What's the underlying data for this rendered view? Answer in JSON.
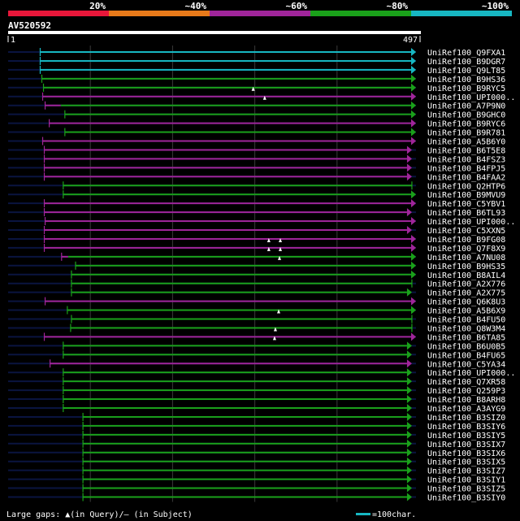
{
  "legend": {
    "bands": [
      {
        "label": "20%",
        "color": "#e8173a"
      },
      {
        "label": "~40%",
        "color": "#e87a1a"
      },
      {
        "label": "~60%",
        "color": "#a0259a"
      },
      {
        "label": "~80%",
        "color": "#1aa11a"
      },
      {
        "label": "~100%",
        "color": "#17b7c2"
      }
    ]
  },
  "query": {
    "name": "AV520592",
    "start": "1",
    "end": "497",
    "length": 497
  },
  "hits": [
    {
      "name": "UniRef100_Q9FXA1",
      "start": 40,
      "end": 497,
      "color": "#17b7c2",
      "arrow": true
    },
    {
      "name": "UniRef100_B9DGR7",
      "start": 40,
      "end": 497,
      "color": "#17b7c2",
      "arrow": true
    },
    {
      "name": "UniRef100_Q9LT85",
      "start": 40,
      "end": 497,
      "color": "#17b7c2",
      "arrow": true
    },
    {
      "name": "UniRef100_B9HS36",
      "start": 42,
      "end": 497,
      "color": "#1aa11a",
      "arrow": true
    },
    {
      "name": "UniRef100_B9RYC5",
      "start": 44,
      "end": 497,
      "color": "#1aa11a",
      "arrow": true,
      "gaps_query": [
        299
      ]
    },
    {
      "name": "UniRef100_UPI000..",
      "start": 43,
      "end": 497,
      "color": "#a0259a",
      "arrow": true,
      "gaps_query": [
        313
      ]
    },
    {
      "name": "UniRef100_A7P9N0",
      "start": 46,
      "end": 497,
      "color": "#a0259a",
      "arrow": true,
      "segments": [
        {
          "start": 46,
          "end": 65,
          "color": "#a0259a"
        },
        {
          "start": 65,
          "end": 497,
          "color": "#1aa11a"
        }
      ]
    },
    {
      "name": "UniRef100_B9GHC0",
      "start": 70,
      "end": 497,
      "color": "#1aa11a",
      "arrow": true
    },
    {
      "name": "UniRef100_B9RYC6",
      "start": 51,
      "end": 497,
      "color": "#a0259a",
      "arrow": true
    },
    {
      "name": "UniRef100_B9R781",
      "start": 70,
      "end": 497,
      "color": "#1aa11a",
      "arrow": true
    },
    {
      "name": "UniRef100_A5B6Y0",
      "start": 43,
      "end": 497,
      "color": "#a0259a",
      "arrow": true
    },
    {
      "name": "UniRef100_B6T5E8",
      "start": 45,
      "end": 492,
      "color": "#a0259a",
      "arrow": true
    },
    {
      "name": "UniRef100_B4FSZ3",
      "start": 45,
      "end": 492,
      "color": "#a0259a",
      "arrow": true
    },
    {
      "name": "UniRef100_B4FPJ5",
      "start": 45,
      "end": 492,
      "color": "#a0259a",
      "arrow": true
    },
    {
      "name": "UniRef100_B4FAA2",
      "start": 45,
      "end": 492,
      "color": "#a0259a",
      "arrow": true
    },
    {
      "name": "UniRef100_Q2HTP6",
      "start": 68,
      "end": 492,
      "color": "#1aa11a",
      "arrow": false
    },
    {
      "name": "UniRef100_B9MVU9",
      "start": 68,
      "end": 497,
      "color": "#1aa11a",
      "arrow": true
    },
    {
      "name": "UniRef100_C5YBV1",
      "start": 45,
      "end": 497,
      "color": "#a0259a",
      "arrow": true
    },
    {
      "name": "UniRef100_B6TL93",
      "start": 45,
      "end": 492,
      "color": "#a0259a",
      "arrow": true
    },
    {
      "name": "UniRef100_UPI000..",
      "start": 46,
      "end": 497,
      "color": "#a0259a",
      "arrow": true
    },
    {
      "name": "UniRef100_C5XXN5",
      "start": 45,
      "end": 492,
      "color": "#a0259a",
      "arrow": true
    },
    {
      "name": "UniRef100_B9FG08",
      "start": 45,
      "end": 497,
      "color": "#a0259a",
      "arrow": true,
      "gaps_query": [
        318,
        332
      ]
    },
    {
      "name": "UniRef100_Q7F8X9",
      "start": 45,
      "end": 497,
      "color": "#a0259a",
      "arrow": true,
      "gaps_query": [
        318,
        332
      ]
    },
    {
      "name": "UniRef100_A7NU08",
      "start": 66,
      "end": 497,
      "color": "#a0259a",
      "arrow": true,
      "segments": [
        {
          "start": 66,
          "end": 74,
          "color": "#a0259a"
        },
        {
          "start": 74,
          "end": 497,
          "color": "#1aa11a"
        }
      ],
      "gaps_query": [
        331
      ]
    },
    {
      "name": "UniRef100_B9HS35",
      "start": 83,
      "end": 497,
      "color": "#1aa11a",
      "arrow": true
    },
    {
      "name": "UniRef100_B8AIL4",
      "start": 78,
      "end": 497,
      "color": "#1aa11a",
      "arrow": true
    },
    {
      "name": "UniRef100_A2X776",
      "start": 78,
      "end": 492,
      "color": "#1aa11a",
      "arrow": false
    },
    {
      "name": "UniRef100_A2X775",
      "start": 78,
      "end": 492,
      "color": "#1aa11a",
      "arrow": true
    },
    {
      "name": "UniRef100_Q6K8U3",
      "start": 46,
      "end": 497,
      "color": "#a0259a",
      "arrow": true
    },
    {
      "name": "UniRef100_A5B6X9",
      "start": 73,
      "end": 497,
      "color": "#1aa11a",
      "arrow": true,
      "gaps_query": [
        330
      ]
    },
    {
      "name": "UniRef100_B4FU50",
      "start": 78,
      "end": 492,
      "color": "#1aa11a",
      "arrow": false
    },
    {
      "name": "UniRef100_Q8W3M4",
      "start": 77,
      "end": 492,
      "color": "#1aa11a",
      "arrow": false,
      "gaps_query": [
        326
      ]
    },
    {
      "name": "UniRef100_B6TA85",
      "start": 45,
      "end": 497,
      "color": "#a0259a",
      "arrow": true,
      "gaps_query": [
        325
      ]
    },
    {
      "name": "UniRef100_B6U0B5",
      "start": 68,
      "end": 492,
      "color": "#1aa11a",
      "arrow": true
    },
    {
      "name": "UniRef100_B4FU65",
      "start": 68,
      "end": 492,
      "color": "#1aa11a",
      "arrow": true
    },
    {
      "name": "UniRef100_C5YA34",
      "start": 52,
      "end": 492,
      "color": "#a0259a",
      "arrow": true
    },
    {
      "name": "UniRef100_UPI000..",
      "start": 68,
      "end": 492,
      "color": "#1aa11a",
      "arrow": true
    },
    {
      "name": "UniRef100_Q7XR58",
      "start": 68,
      "end": 492,
      "color": "#1aa11a",
      "arrow": true
    },
    {
      "name": "UniRef100_Q259P3",
      "start": 68,
      "end": 492,
      "color": "#1aa11a",
      "arrow": true
    },
    {
      "name": "UniRef100_B8ARH8",
      "start": 68,
      "end": 492,
      "color": "#1aa11a",
      "arrow": true
    },
    {
      "name": "UniRef100_A3AYG9",
      "start": 68,
      "end": 492,
      "color": "#1aa11a",
      "arrow": true
    },
    {
      "name": "UniRef100_B3SIZ0",
      "start": 92,
      "end": 492,
      "color": "#1aa11a",
      "arrow": true
    },
    {
      "name": "UniRef100_B3SIY6",
      "start": 92,
      "end": 492,
      "color": "#1aa11a",
      "arrow": true
    },
    {
      "name": "UniRef100_B3SIY5",
      "start": 92,
      "end": 492,
      "color": "#1aa11a",
      "arrow": true
    },
    {
      "name": "UniRef100_B3SIX7",
      "start": 92,
      "end": 492,
      "color": "#1aa11a",
      "arrow": true
    },
    {
      "name": "UniRef100_B3SIX6",
      "start": 92,
      "end": 492,
      "color": "#1aa11a",
      "arrow": true
    },
    {
      "name": "UniRef100_B3SIX5",
      "start": 92,
      "end": 492,
      "color": "#1aa11a",
      "arrow": true
    },
    {
      "name": "UniRef100_B3SIZ7",
      "start": 92,
      "end": 492,
      "color": "#1aa11a",
      "arrow": true
    },
    {
      "name": "UniRef100_B3SIY1",
      "start": 92,
      "end": 492,
      "color": "#1aa11a",
      "arrow": true
    },
    {
      "name": "UniRef100_B3SIZ5",
      "start": 92,
      "end": 492,
      "color": "#1aa11a",
      "arrow": true
    },
    {
      "name": "UniRef100_B3SIY0",
      "start": 92,
      "end": 492,
      "color": "#1aa11a",
      "arrow": true
    }
  ],
  "footer": {
    "gaps_text": "Large gaps: ▲(in Query)/– (in Subject)",
    "scale_text": "=100char.",
    "scale_color": "#17b7c2"
  },
  "colors": {
    "background": "#000000",
    "track": "#0a1440",
    "grid": "#3a3a3a",
    "query_bar": "#ffffff"
  }
}
